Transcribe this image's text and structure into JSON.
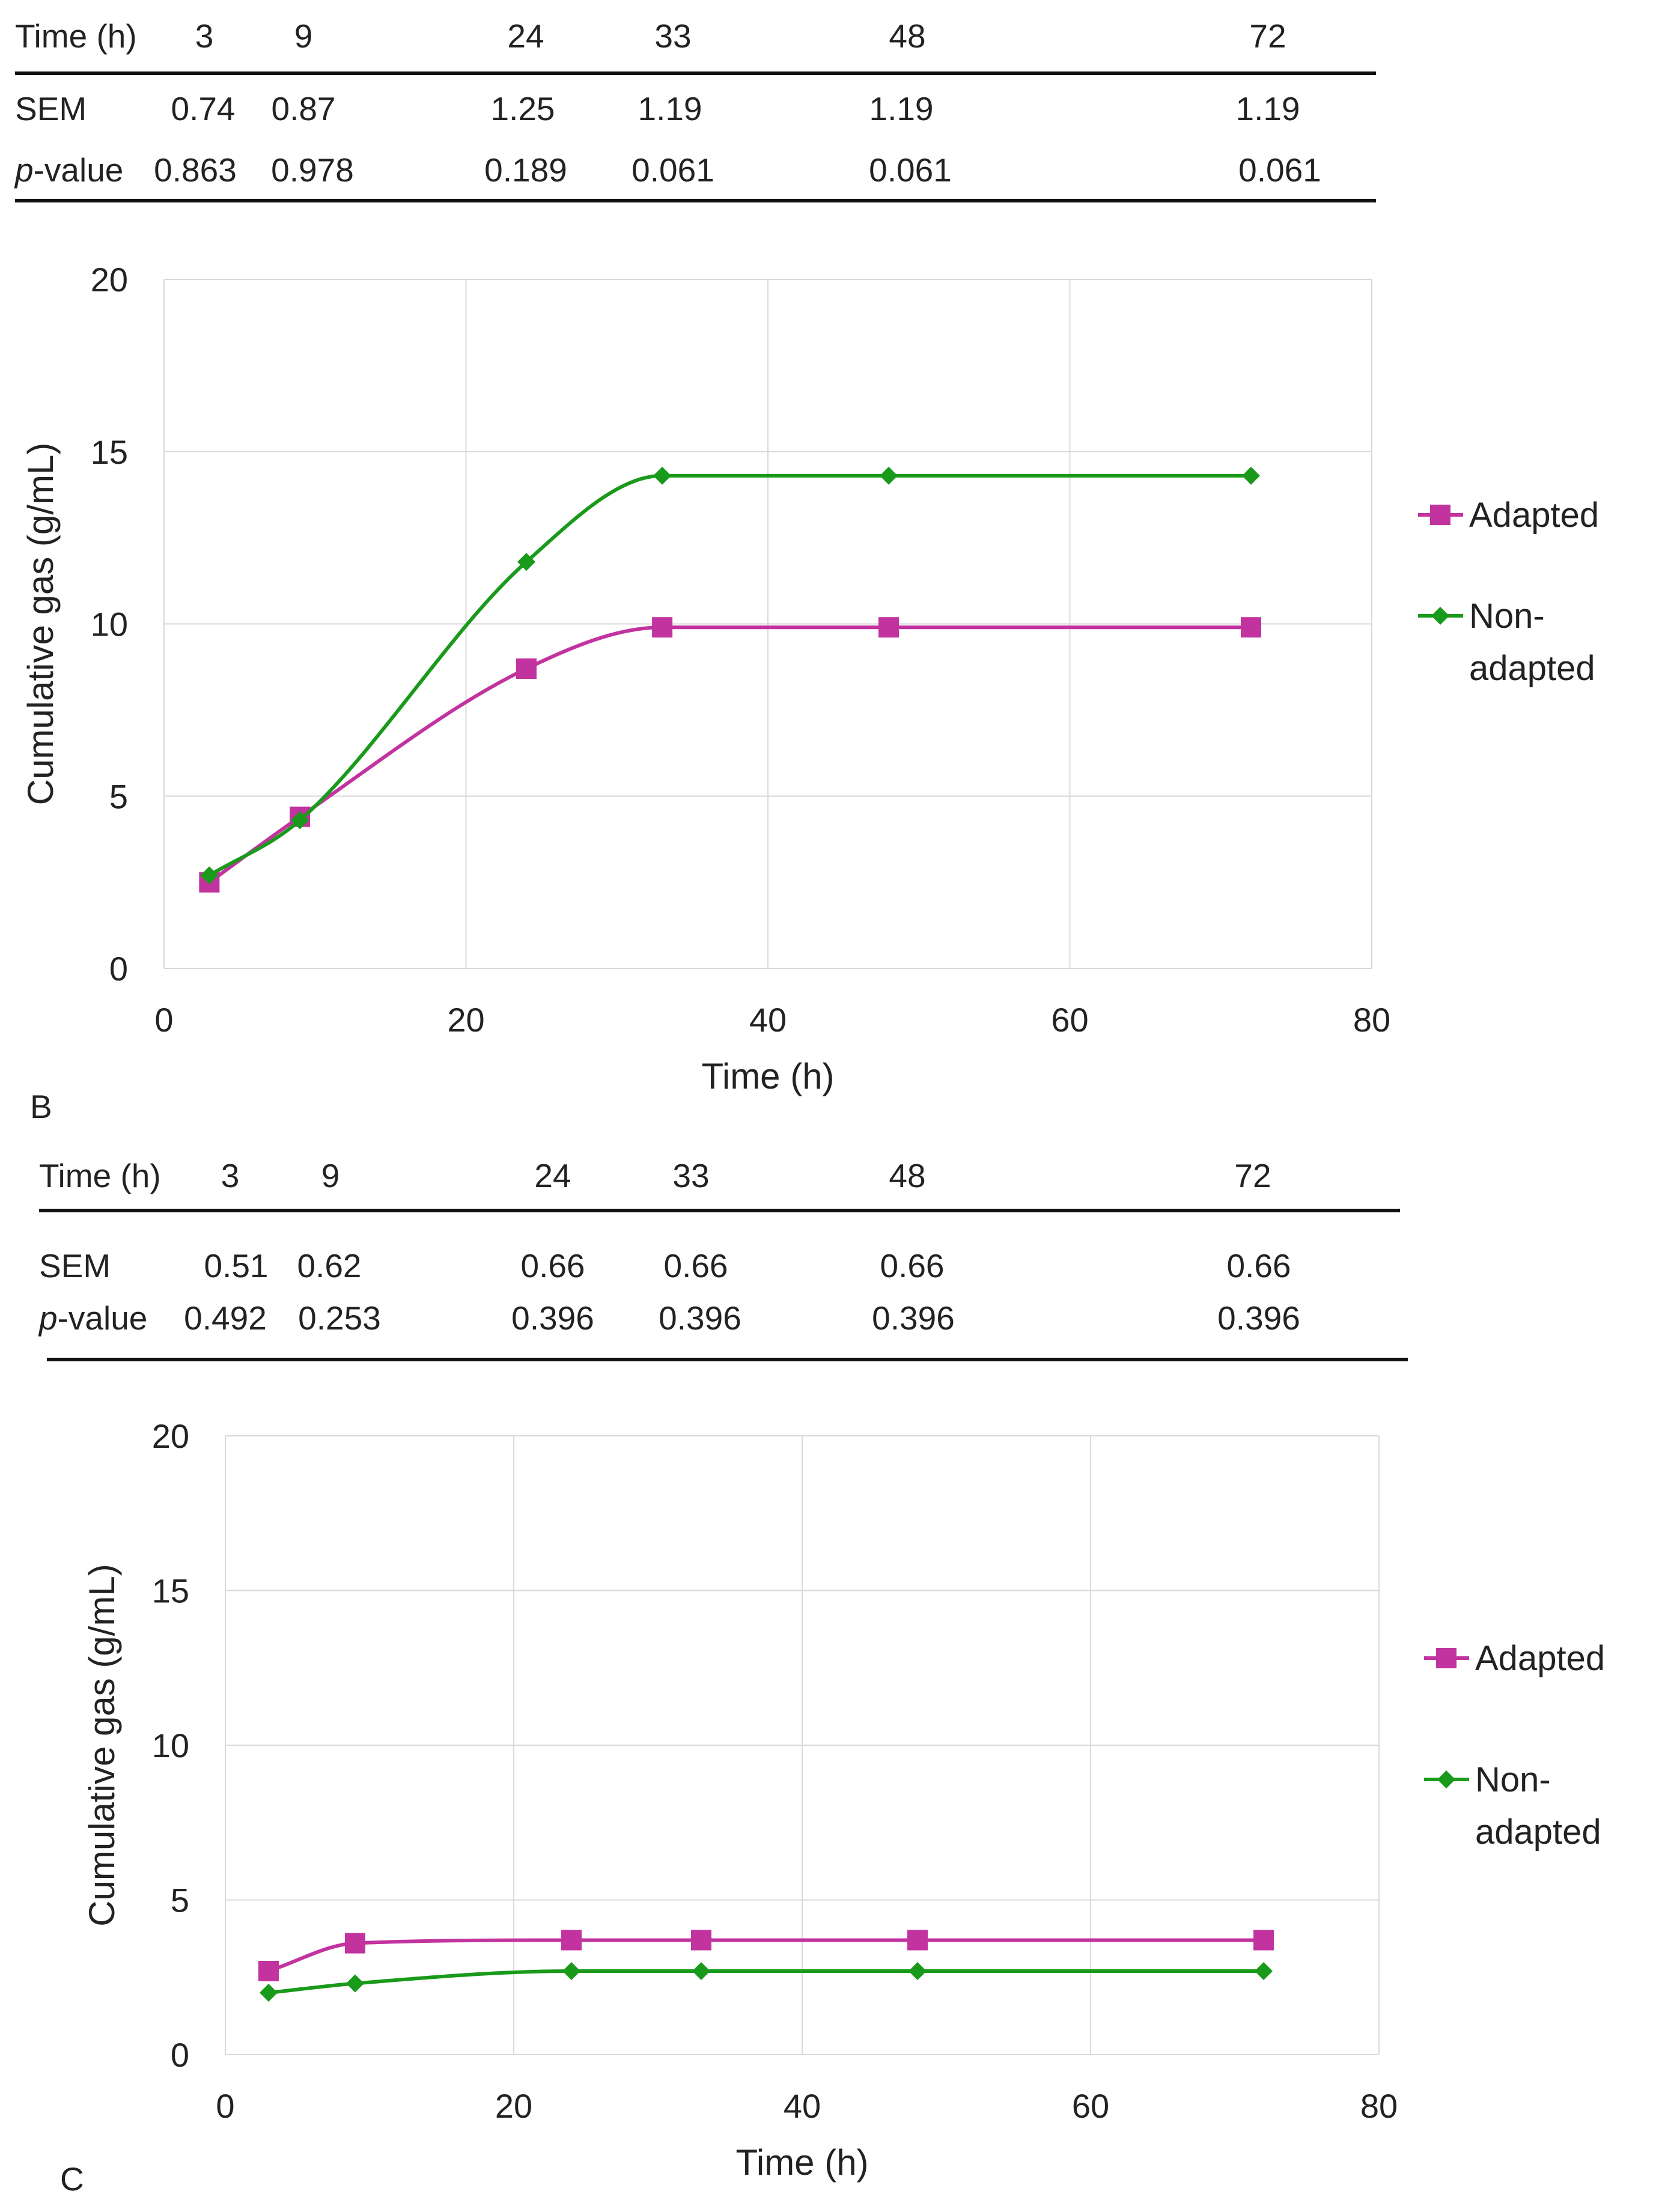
{
  "tables": [
    {
      "header_label": "Time (h)",
      "times": [
        "3",
        "9",
        "24",
        "33",
        "48",
        "72"
      ],
      "sem_label": "SEM",
      "sem": [
        "0.74",
        "0.87",
        "1.25",
        "1.19",
        "1.19",
        "1.19"
      ],
      "p_italic": "p",
      "p_rest": "-value",
      "pvalues": [
        "0.863",
        "0.978",
        "0.189",
        "0.061",
        "0.061",
        "0.061"
      ]
    },
    {
      "header_label": "Time (h)",
      "times": [
        "3",
        "9",
        "24",
        "33",
        "48",
        "72"
      ],
      "sem_label": "SEM",
      "sem": [
        "0.51",
        "0.62",
        "0.66",
        "0.66",
        "0.66",
        "0.66"
      ],
      "p_italic": "p",
      "p_rest": "-value",
      "pvalues": [
        "0.492",
        "0.253",
        "0.396",
        "0.396",
        "0.396",
        "0.396"
      ]
    }
  ],
  "panel_labels": [
    "B",
    "C"
  ],
  "chart_data": [
    {
      "type": "line",
      "xlabel": "Time (h)",
      "ylabel": "Cumulative gas  (g/mL)",
      "xlim": [
        0,
        80
      ],
      "ylim": [
        0,
        20
      ],
      "xticks": [
        0,
        20,
        40,
        60,
        80
      ],
      "yticks": [
        0,
        5,
        10,
        15,
        20
      ],
      "grid": true,
      "legend_position": "right",
      "x": [
        3,
        9,
        24,
        33,
        48,
        72
      ],
      "series": [
        {
          "name": "Adapted",
          "color": "#c2339f",
          "marker": "square",
          "values": [
            2.5,
            4.4,
            8.7,
            9.9,
            9.9,
            9.9
          ]
        },
        {
          "name": "Non-adapted",
          "legend_lines": [
            "Non-",
            "adapted"
          ],
          "color": "#1a9a1a",
          "marker": "diamond",
          "values": [
            2.7,
            4.3,
            11.8,
            14.3,
            14.3,
            14.3
          ]
        }
      ]
    },
    {
      "type": "line",
      "xlabel": "Time (h)",
      "ylabel": "Cumulative gas  (g/mL)",
      "xlim": [
        0,
        80
      ],
      "ylim": [
        0,
        20
      ],
      "xticks": [
        0,
        20,
        40,
        60,
        80
      ],
      "yticks": [
        0,
        5,
        10,
        15,
        20
      ],
      "grid": true,
      "legend_position": "right",
      "x": [
        3,
        9,
        24,
        33,
        48,
        72
      ],
      "series": [
        {
          "name": "Adapted",
          "color": "#c2339f",
          "marker": "square",
          "values": [
            2.7,
            3.6,
            3.7,
            3.7,
            3.7,
            3.7
          ]
        },
        {
          "name": "Non-adapted",
          "legend_lines": [
            "Non-",
            "adapted"
          ],
          "color": "#1a9a1a",
          "marker": "diamond",
          "values": [
            2.0,
            2.3,
            2.7,
            2.7,
            2.7,
            2.7
          ]
        }
      ]
    }
  ]
}
